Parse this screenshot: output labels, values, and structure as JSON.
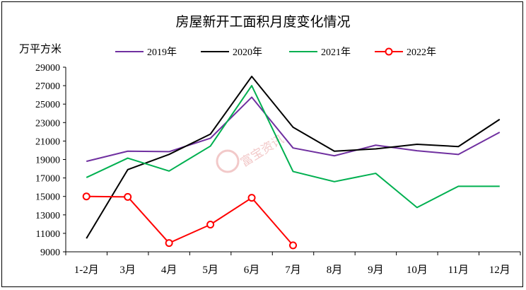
{
  "chart_data": {
    "type": "line",
    "title": "房屋新开工面积月度变化情况",
    "ylabel": "万平方米",
    "xlabel": "",
    "ylim": [
      9000,
      29000
    ],
    "yticks": [
      9000,
      11000,
      13000,
      15000,
      17000,
      19000,
      21000,
      23000,
      25000,
      27000,
      29000
    ],
    "categories": [
      "1-2月",
      "3月",
      "4月",
      "5月",
      "6月",
      "7月",
      "8月",
      "9月",
      "10月",
      "11月",
      "12月"
    ],
    "series": [
      {
        "name": "2019年",
        "color": "#7030a0",
        "marker": "none",
        "values": [
          18800,
          19900,
          19850,
          21300,
          25750,
          20250,
          19400,
          20550,
          19950,
          19550,
          21950
        ]
      },
      {
        "name": "2020年",
        "color": "#000000",
        "marker": "none",
        "values": [
          10450,
          17900,
          19550,
          21750,
          28000,
          22500,
          19900,
          20150,
          20650,
          20400,
          23350
        ]
      },
      {
        "name": "2021年",
        "color": "#00b050",
        "marker": "none",
        "values": [
          17050,
          19150,
          17750,
          20450,
          27000,
          17700,
          16600,
          17500,
          13800,
          16100,
          16100
        ]
      },
      {
        "name": "2022年",
        "color": "#ff0000",
        "marker": "circle",
        "values": [
          15000,
          14950,
          9950,
          11950,
          14850,
          9700,
          null,
          null,
          null,
          null,
          null
        ]
      }
    ],
    "grid": false,
    "legend_position": "top"
  },
  "watermark": {
    "text": "富宝资讯"
  }
}
